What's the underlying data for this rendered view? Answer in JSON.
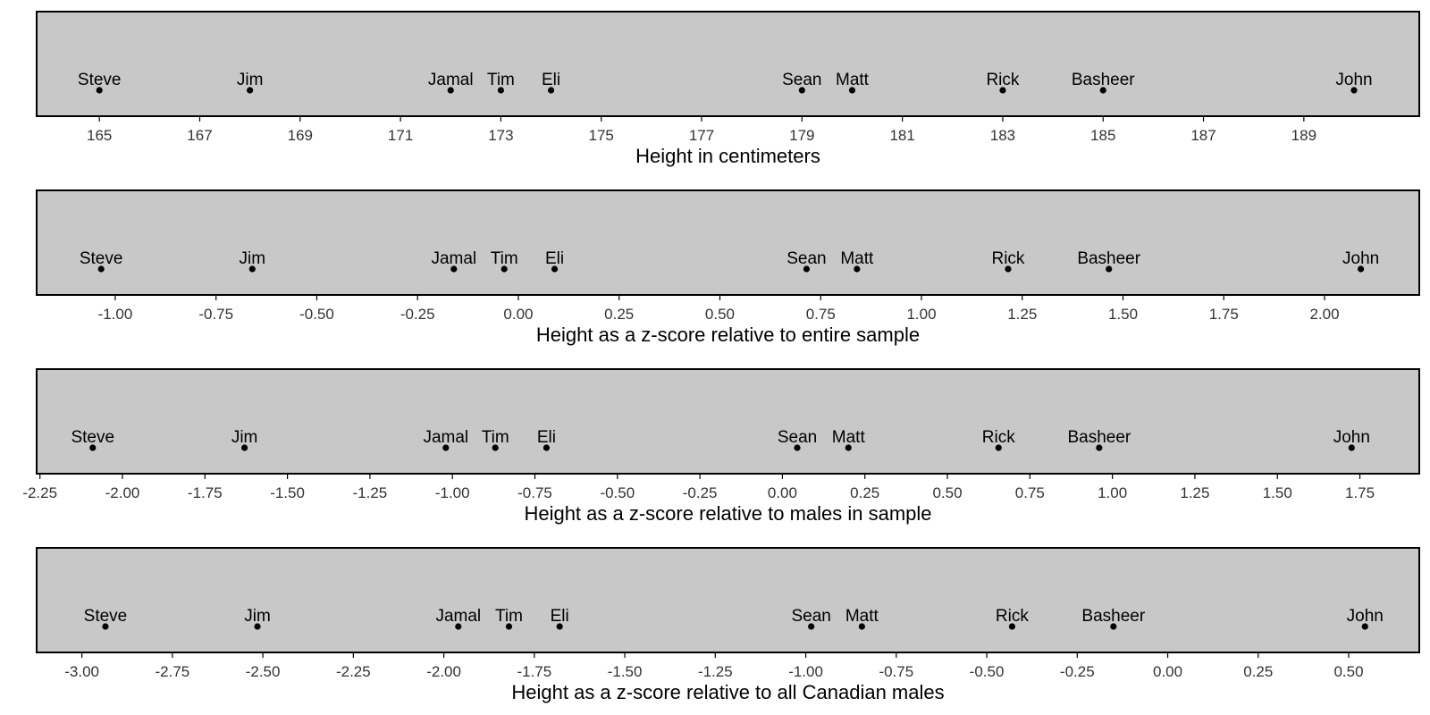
{
  "chart_data": [
    {
      "type": "scatter",
      "title": "",
      "xlabel": "Height in centimeters",
      "ylabel": "",
      "grid": false,
      "legend": "none",
      "xlim": [
        163.75,
        191.3
      ],
      "xticks": [
        "165",
        "167",
        "169",
        "171",
        "173",
        "175",
        "177",
        "179",
        "181",
        "183",
        "185",
        "187",
        "189"
      ],
      "xtick_values": [
        165,
        167,
        169,
        171,
        173,
        175,
        177,
        179,
        181,
        183,
        185,
        187,
        189
      ],
      "points": [
        {
          "label": "Steve",
          "x": 165
        },
        {
          "label": "Jim",
          "x": 168
        },
        {
          "label": "Jamal",
          "x": 172
        },
        {
          "label": "Tim",
          "x": 173
        },
        {
          "label": "Eli",
          "x": 174
        },
        {
          "label": "Sean",
          "x": 179
        },
        {
          "label": "Matt",
          "x": 180
        },
        {
          "label": "Rick",
          "x": 183
        },
        {
          "label": "Basheer",
          "x": 185
        },
        {
          "label": "John",
          "x": 190
        }
      ]
    },
    {
      "type": "scatter",
      "title": "",
      "xlabel": "Height as a z-score relative to entire sample",
      "ylabel": "",
      "grid": false,
      "legend": "none",
      "xlim": [
        -1.195,
        2.235
      ],
      "xticks": [
        "-1.00",
        "-0.75",
        "-0.50",
        "-0.25",
        "0.00",
        "0.25",
        "0.50",
        "0.75",
        "1.00",
        "1.25",
        "1.50",
        "1.75",
        "2.00"
      ],
      "xtick_values": [
        -1.0,
        -0.75,
        -0.5,
        -0.25,
        0.0,
        0.25,
        0.5,
        0.75,
        1.0,
        1.25,
        1.5,
        1.75,
        2.0
      ],
      "points": [
        {
          "label": "Steve",
          "x": -1.035
        },
        {
          "label": "Jim",
          "x": -0.66
        },
        {
          "label": "Jamal",
          "x": -0.16
        },
        {
          "label": "Tim",
          "x": -0.035
        },
        {
          "label": "Eli",
          "x": 0.09
        },
        {
          "label": "Sean",
          "x": 0.715
        },
        {
          "label": "Matt",
          "x": 0.84
        },
        {
          "label": "Rick",
          "x": 1.215
        },
        {
          "label": "Basheer",
          "x": 1.465
        },
        {
          "label": "John",
          "x": 2.09
        }
      ]
    },
    {
      "type": "scatter",
      "title": "",
      "xlabel": "Height as a z-score relative to males in sample",
      "ylabel": "",
      "grid": false,
      "legend": "none",
      "xlim": [
        -2.26,
        1.93
      ],
      "xticks": [
        "-2.25",
        "-2.00",
        "-1.75",
        "-1.50",
        "-1.25",
        "-1.00",
        "-0.75",
        "-0.50",
        "-0.25",
        "0.00",
        "0.25",
        "0.50",
        "0.75",
        "1.00",
        "1.25",
        "1.50",
        "1.75"
      ],
      "xtick_values": [
        -2.25,
        -2.0,
        -1.75,
        -1.5,
        -1.25,
        -1.0,
        -0.75,
        -0.5,
        -0.25,
        0.0,
        0.25,
        0.5,
        0.75,
        1.0,
        1.25,
        1.5,
        1.75
      ],
      "points": [
        {
          "label": "Steve",
          "x": -2.09
        },
        {
          "label": "Jim",
          "x": -1.63
        },
        {
          "label": "Jamal",
          "x": -1.02
        },
        {
          "label": "Tim",
          "x": -0.87
        },
        {
          "label": "Eli",
          "x": -0.715
        },
        {
          "label": "Sean",
          "x": 0.045
        },
        {
          "label": "Matt",
          "x": 0.2
        },
        {
          "label": "Rick",
          "x": 0.655
        },
        {
          "label": "Basheer",
          "x": 0.96
        },
        {
          "label": "John",
          "x": 1.725
        }
      ]
    },
    {
      "type": "scatter",
      "title": "",
      "xlabel": "Height as a z-score relative to all Canadian males",
      "ylabel": "",
      "grid": false,
      "legend": "none",
      "xlim": [
        -3.125,
        0.695
      ],
      "xticks": [
        "-3.00",
        "-2.75",
        "-2.50",
        "-2.25",
        "-2.00",
        "-1.75",
        "-1.50",
        "-1.25",
        "-1.00",
        "-0.75",
        "-0.50",
        "-0.25",
        "0.00",
        "0.25",
        "0.50"
      ],
      "xtick_values": [
        -3.0,
        -2.75,
        -2.5,
        -2.25,
        -2.0,
        -1.75,
        -1.5,
        -1.25,
        -1.0,
        -0.75,
        -0.5,
        -0.25,
        0.0,
        0.25,
        0.5
      ],
      "points": [
        {
          "label": "Steve",
          "x": -2.935
        },
        {
          "label": "Jim",
          "x": -2.515
        },
        {
          "label": "Jamal",
          "x": -1.96
        },
        {
          "label": "Tim",
          "x": -1.82
        },
        {
          "label": "Eli",
          "x": -1.68
        },
        {
          "label": "Sean",
          "x": -0.985
        },
        {
          "label": "Matt",
          "x": -0.845
        },
        {
          "label": "Rick",
          "x": -0.43
        },
        {
          "label": "Basheer",
          "x": -0.15
        },
        {
          "label": "John",
          "x": 0.545
        }
      ]
    }
  ]
}
